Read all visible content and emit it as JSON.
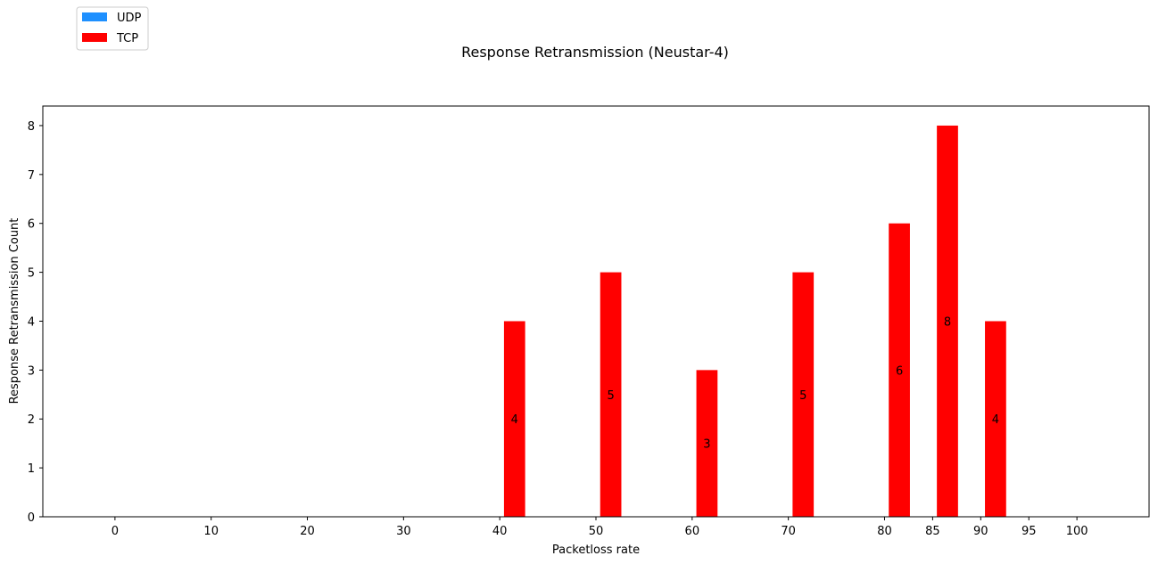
{
  "chart_data": {
    "type": "bar",
    "title": "Response Retransmission (Neustar-4)",
    "xlabel": "Packetloss rate",
    "ylabel": "Response Retransmission Count",
    "x_ticks": [
      0,
      10,
      20,
      30,
      40,
      50,
      60,
      70,
      80,
      85,
      90,
      95,
      100
    ],
    "xlim": [
      -7.5,
      107.5
    ],
    "ylim": [
      0,
      8.4
    ],
    "y_ticks": [
      0,
      1,
      2,
      3,
      4,
      5,
      6,
      7,
      8
    ],
    "grid": false,
    "legend_position": "top-left",
    "series": [
      {
        "name": "UDP",
        "color": "#1e90ff",
        "x": [
          0,
          10,
          20,
          30,
          40,
          50,
          60,
          70,
          80,
          85,
          90,
          95,
          100
        ],
        "values": [
          0,
          0,
          0,
          0,
          0,
          0,
          0,
          0,
          0,
          0,
          0,
          0,
          0
        ]
      },
      {
        "name": "TCP",
        "color": "#ff0000",
        "x": [
          0,
          10,
          20,
          30,
          40,
          50,
          60,
          70,
          80,
          85,
          90,
          95,
          100
        ],
        "values": [
          0,
          0,
          0,
          0,
          4,
          5,
          3,
          5,
          6,
          8,
          4,
          0,
          0
        ],
        "data_labels": [
          "",
          "",
          "",
          "",
          "4",
          "5",
          "3",
          "5",
          "6",
          "8",
          "4",
          "",
          ""
        ]
      }
    ]
  }
}
